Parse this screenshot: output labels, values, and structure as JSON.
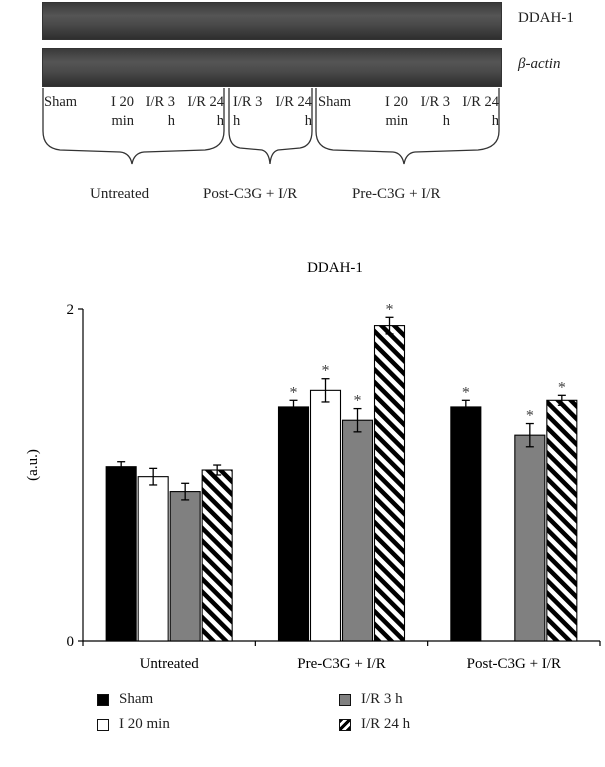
{
  "blot": {
    "bands": [
      "DDAH-1",
      "β-actin"
    ],
    "lanes_untreated": [
      "Sham",
      "I 20 min",
      "I/R 3 h",
      "I/R 24 h"
    ],
    "lanes_post": [
      "I/R 3 h",
      "I/R 24 h"
    ],
    "lanes_pre": [
      "Sham",
      "I 20 min",
      "I/R 3 h",
      "I/R 24 h"
    ],
    "groups": [
      "Untreated",
      "Post-C3G + I/R",
      "Pre-C3G + I/R"
    ]
  },
  "chart_data": {
    "type": "bar",
    "title": "DDAH-1",
    "xlabel": "",
    "ylabel": "(a.u.)",
    "ylim": [
      0,
      2
    ],
    "yticks": [
      0,
      2
    ],
    "categories": [
      "Untreated",
      "Pre-C3G + I/R",
      "Post-C3G + I/R"
    ],
    "series": [
      {
        "name": "Sham",
        "values": [
          1.05,
          1.41,
          1.41
        ],
        "errors": [
          0.03,
          0.04,
          0.04
        ],
        "significant": [
          false,
          true,
          true
        ],
        "fill": "solid-black"
      },
      {
        "name": "I 20 min",
        "values": [
          0.99,
          1.51,
          null
        ],
        "errors": [
          0.05,
          0.07,
          null
        ],
        "significant": [
          false,
          true,
          false
        ],
        "fill": "white"
      },
      {
        "name": "I/R 3 h",
        "values": [
          0.9,
          1.33,
          1.24
        ],
        "errors": [
          0.05,
          0.07,
          0.07
        ],
        "significant": [
          false,
          true,
          true
        ],
        "fill": "gray"
      },
      {
        "name": "I/R 24 h",
        "values": [
          1.03,
          1.9,
          1.45
        ],
        "errors": [
          0.03,
          0.05,
          0.03
        ],
        "significant": [
          false,
          true,
          true
        ],
        "fill": "diagonal-stripes"
      }
    ],
    "significance_marker": "*",
    "legend_position": "bottom",
    "grid": false,
    "colors": {
      "sham": "#000000",
      "i20": "#ffffff",
      "ir3": "#808080",
      "ir24_stripe": "#000000"
    }
  },
  "legend": [
    "Sham",
    "I 20 min",
    "I/R 3 h",
    "I/R 24 h"
  ]
}
